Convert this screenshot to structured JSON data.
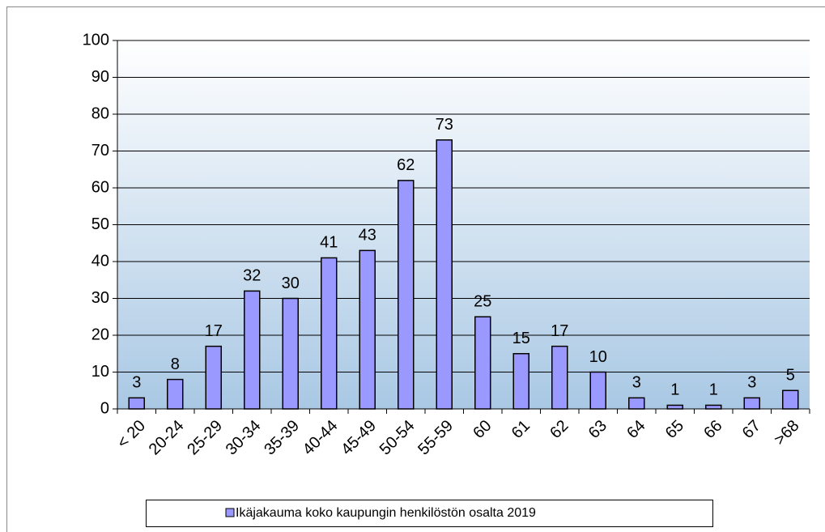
{
  "chart_data": {
    "type": "bar",
    "categories": [
      "< 20",
      "20-24",
      "25-29",
      "30-34",
      "35-39",
      "40-44",
      "45-49",
      "50-54",
      "55-59",
      "60",
      "61",
      "62",
      "63",
      "64",
      "65",
      "66",
      "67",
      ">68"
    ],
    "series": [
      {
        "name": "Ikäjakauma koko kaupungin henkilöstön osalta 2019",
        "color": "#9999ff",
        "values": [
          3,
          8,
          17,
          32,
          30,
          41,
          43,
          62,
          73,
          25,
          15,
          17,
          10,
          3,
          1,
          1,
          3,
          5
        ]
      }
    ],
    "ylim": [
      0,
      100
    ],
    "yticks": [
      0,
      10,
      20,
      30,
      40,
      50,
      60,
      70,
      80,
      90,
      100
    ],
    "grid": true,
    "legend": "bottom"
  }
}
